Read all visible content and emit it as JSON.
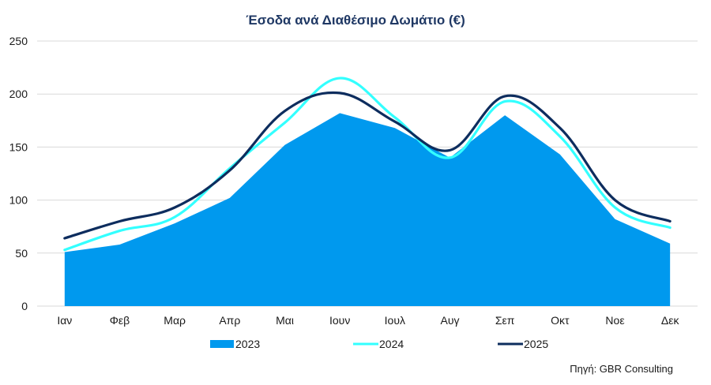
{
  "chart_data": {
    "type": "area",
    "title": "Έσοδα ανά Διαθέσιμο Δωμάτιο (€)",
    "categories": [
      "Ιαν",
      "Φεβ",
      "Μαρ",
      "Απρ",
      "Μαι",
      "Ιουν",
      "Ιουλ",
      "Αυγ",
      "Σεπ",
      "Οκτ",
      "Νοε",
      "Δεκ"
    ],
    "ylim": [
      0,
      250
    ],
    "yticks": [
      0,
      50,
      100,
      150,
      200,
      250
    ],
    "grid": true,
    "legend_position": "bottom",
    "series": [
      {
        "name": "2023",
        "kind": "area",
        "color": "#0099ee",
        "values": [
          51,
          58,
          78,
          102,
          152,
          182,
          168,
          140,
          180,
          143,
          82,
          59
        ]
      },
      {
        "name": "2024",
        "kind": "line",
        "color": "#33ffff",
        "values": [
          53,
          71,
          84,
          130,
          173,
          215,
          178,
          140,
          193,
          160,
          93,
          74
        ]
      },
      {
        "name": "2025",
        "kind": "line",
        "color": "#0d2d5e",
        "values": [
          64,
          80,
          93,
          128,
          184,
          201,
          174,
          147,
          198,
          168,
          100,
          80
        ]
      }
    ],
    "source": "Πηγή: GBR Consulting"
  }
}
